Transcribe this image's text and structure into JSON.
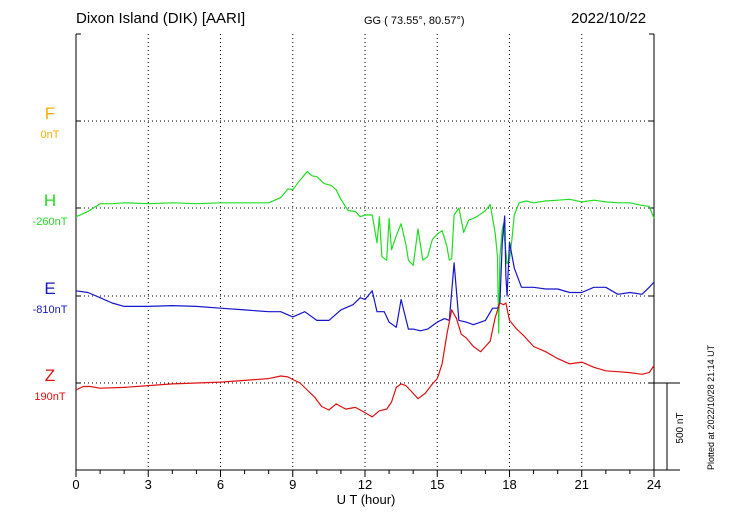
{
  "header": {
    "station": "Dixon Island (DIK)  [AARI]",
    "coords": "GG ( 73.55°,  80.57°)",
    "date": "2022/10/22"
  },
  "plotted_note": "Plotted at 2022/10/28 21:14 UT",
  "chart_data": {
    "type": "line",
    "xlabel": "U T (hour)",
    "xlim": [
      0,
      24
    ],
    "xticks": [
      "0",
      "3",
      "6",
      "9",
      "12",
      "15",
      "18",
      "21",
      "24"
    ],
    "scale_bar_label": "500 nT",
    "scale_bar_nT": 500,
    "series": [
      {
        "name": "F",
        "offset_label": "0nT",
        "color": "#f5b000",
        "baseline_nT": 0,
        "x": [],
        "y": []
      },
      {
        "name": "H",
        "offset_label": "-260nT",
        "color": "#22dd22",
        "baseline_nT": -260,
        "x": [
          0,
          0.5,
          1,
          1.5,
          2,
          3,
          4,
          5,
          6,
          7,
          8,
          8.5,
          8.8,
          9,
          9.3,
          9.6,
          9.8,
          10,
          10.3,
          10.6,
          10.8,
          11,
          11.3,
          11.6,
          11.8,
          12,
          12.3,
          12.5,
          12.6,
          12.7,
          12.9,
          13.0,
          13.1,
          13.3,
          13.5,
          13.7,
          13.8,
          14.0,
          14.2,
          14.4,
          14.6,
          14.8,
          15.0,
          15.2,
          15.4,
          15.5,
          15.6,
          15.7,
          15.9,
          16.1,
          16.3,
          16.5,
          16.7,
          17.0,
          17.2,
          17.4,
          17.5,
          17.55,
          17.6,
          17.7,
          17.75,
          17.8,
          17.9,
          18.0,
          18.1,
          18.2,
          18.4,
          18.7,
          19,
          19.5,
          20,
          20.5,
          21,
          21.5,
          22,
          22.5,
          23,
          23.5,
          23.8,
          24
        ],
        "y": [
          -310,
          -280,
          -235,
          -235,
          -230,
          -235,
          -230,
          -235,
          -230,
          -230,
          -230,
          -200,
          -150,
          -155,
          -100,
          -50,
          -75,
          -80,
          -120,
          -130,
          -155,
          -210,
          -275,
          -280,
          -310,
          -300,
          -300,
          -460,
          -310,
          -540,
          -560,
          -320,
          -500,
          -420,
          -350,
          -470,
          -560,
          -590,
          -380,
          -560,
          -540,
          -440,
          -410,
          -390,
          -480,
          -560,
          -550,
          -300,
          -260,
          -400,
          -330,
          -320,
          -305,
          -275,
          -240,
          -400,
          -540,
          -980,
          -540,
          -380,
          -350,
          -450,
          -580,
          -560,
          -440,
          -300,
          -230,
          -220,
          -230,
          -220,
          -215,
          -210,
          -225,
          -215,
          -225,
          -230,
          -230,
          -245,
          -250,
          -320
        ]
      },
      {
        "name": "E",
        "offset_label": "-810nT",
        "color": "#1515cc",
        "baseline_nT": -810,
        "x": [
          0,
          0.5,
          1,
          1.5,
          2,
          3,
          4,
          5,
          6,
          7,
          8,
          8.5,
          9,
          9.5,
          10,
          10.5,
          11,
          11.5,
          11.8,
          12,
          12.3,
          12.5,
          12.8,
          13,
          13.3,
          13.5,
          13.8,
          14,
          14.3,
          14.6,
          15,
          15.3,
          15.5,
          15.7,
          15.9,
          16.2,
          16.5,
          17,
          17.3,
          17.5,
          17.6,
          17.7,
          17.8,
          17.85,
          17.9,
          18.0,
          18.2,
          18.5,
          19,
          19.5,
          20,
          20.5,
          21,
          21.5,
          22,
          22.5,
          23,
          23.5,
          23.8,
          24
        ],
        "y": [
          -780,
          -790,
          -820,
          -850,
          -870,
          -870,
          -865,
          -870,
          -880,
          -890,
          -900,
          -900,
          -930,
          -900,
          -950,
          -950,
          -890,
          -860,
          -820,
          -830,
          -780,
          -900,
          -900,
          -960,
          -990,
          -830,
          -1000,
          -1000,
          -1010,
          -1000,
          -960,
          -940,
          -950,
          -620,
          -950,
          -960,
          -975,
          -950,
          -880,
          -880,
          -850,
          -500,
          -350,
          -700,
          -810,
          -500,
          -650,
          -760,
          -760,
          -770,
          -770,
          -790,
          -790,
          -760,
          -760,
          -800,
          -790,
          -800,
          -760,
          -730
        ]
      },
      {
        "name": "Z",
        "offset_label": "190nT",
        "color": "#e01010",
        "baseline_nT": 190,
        "x": [
          0,
          0.3,
          0.6,
          1,
          2,
          3,
          4,
          5,
          6,
          7,
          8,
          8.5,
          8.8,
          9,
          9.3,
          9.6,
          9.9,
          10.2,
          10.5,
          10.8,
          11.2,
          11.6,
          12,
          12.3,
          12.6,
          12.9,
          13.1,
          13.3,
          13.5,
          13.7,
          14.0,
          14.2,
          14.5,
          14.8,
          15.0,
          15.2,
          15.4,
          15.6,
          15.8,
          16.0,
          16.2,
          16.5,
          16.8,
          17.0,
          17.2,
          17.4,
          17.6,
          17.75,
          17.85,
          18.0,
          18.3,
          18.6,
          19,
          19.5,
          20,
          20.5,
          21,
          21.5,
          22,
          22.5,
          23,
          23.5,
          23.8,
          24
        ],
        "y": [
          150,
          170,
          170,
          160,
          165,
          175,
          185,
          190,
          195,
          205,
          215,
          230,
          225,
          210,
          190,
          150,
          110,
          55,
          35,
          70,
          40,
          50,
          20,
          -5,
          30,
          40,
          80,
          165,
          185,
          175,
          130,
          100,
          130,
          185,
          215,
          300,
          470,
          610,
          560,
          470,
          450,
          400,
          370,
          400,
          430,
          565,
          650,
          640,
          650,
          550,
          500,
          460,
          400,
          370,
          330,
          300,
          310,
          280,
          260,
          255,
          250,
          240,
          250,
          290
        ]
      }
    ]
  }
}
